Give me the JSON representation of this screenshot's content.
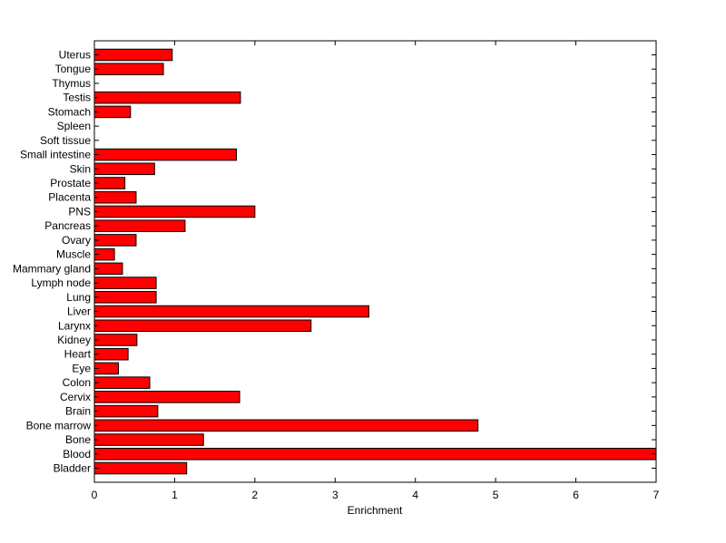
{
  "chart_data": {
    "type": "bar",
    "orientation": "horizontal",
    "title": "",
    "xlabel": "Enrichment",
    "ylabel": "",
    "xlim": [
      0,
      7
    ],
    "xticks": [
      "0",
      "1",
      "2",
      "3",
      "4",
      "5",
      "6",
      "7"
    ],
    "grid": false,
    "bar_color": "#ff0000",
    "bar_edge_color": "#000000",
    "categories": [
      "Bladder",
      "Blood",
      "Bone",
      "Bone marrow",
      "Brain",
      "Cervix",
      "Colon",
      "Eye",
      "Heart",
      "Kidney",
      "Larynx",
      "Liver",
      "Lung",
      "Lymph node",
      "Mammary gland",
      "Muscle",
      "Ovary",
      "Pancreas",
      "PNS",
      "Placenta",
      "Prostate",
      "Skin",
      "Small intestine",
      "Soft tissue",
      "Spleen",
      "Stomach",
      "Testis",
      "Thymus",
      "Tongue",
      "Uterus"
    ],
    "values": [
      1.15,
      7.0,
      1.36,
      4.78,
      0.79,
      1.81,
      0.69,
      0.3,
      0.42,
      0.53,
      2.7,
      3.42,
      0.77,
      0.77,
      0.35,
      0.25,
      0.52,
      1.13,
      2.0,
      0.52,
      0.38,
      0.75,
      1.77,
      0.0,
      0.0,
      0.45,
      1.82,
      0.0,
      0.86,
      0.97
    ]
  }
}
